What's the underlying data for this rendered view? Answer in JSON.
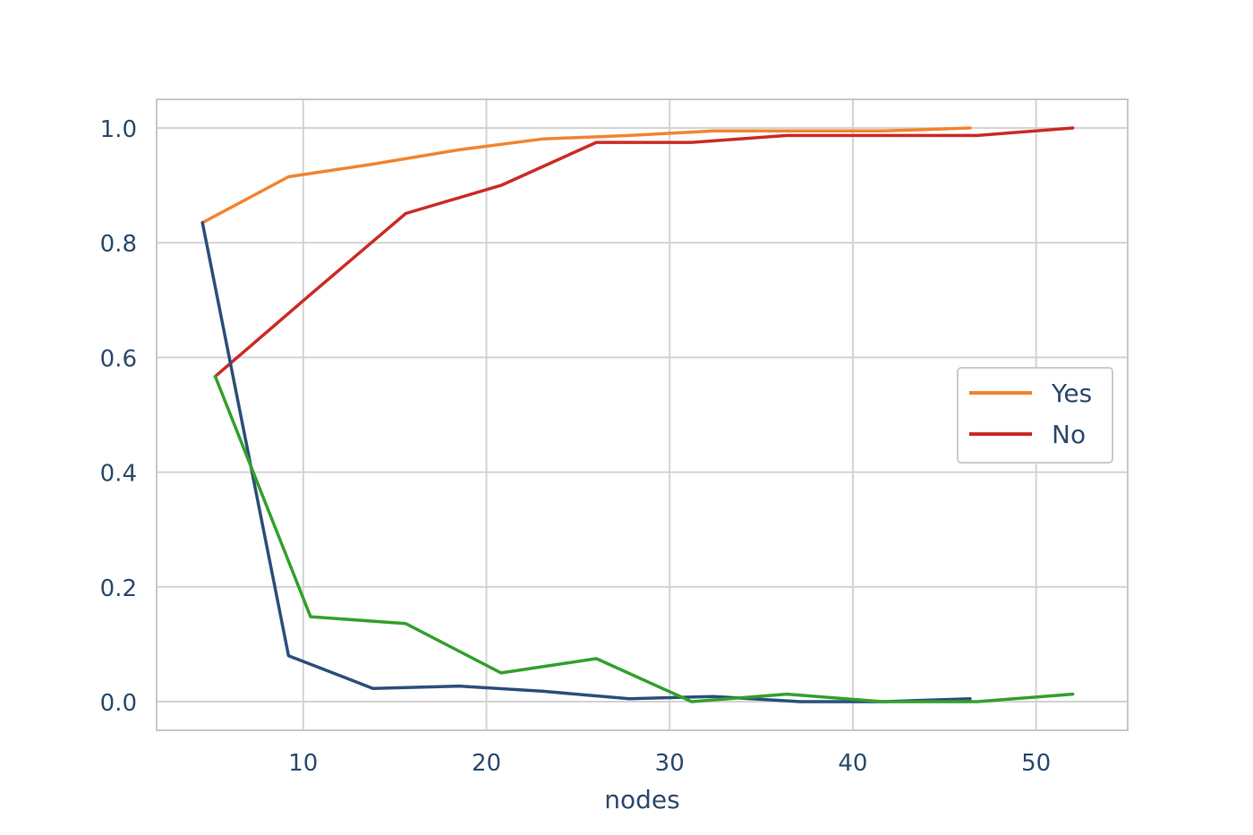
{
  "chart_data": {
    "type": "line",
    "title": "",
    "xlabel": "nodes",
    "ylabel": "",
    "xlim": [
      2,
      55
    ],
    "ylim": [
      -0.05,
      1.05
    ],
    "xticks": [
      10,
      20,
      30,
      40,
      50
    ],
    "yticks": [
      0.0,
      0.2,
      0.4,
      0.6,
      0.8,
      1.0
    ],
    "xtick_labels": [
      "10",
      "20",
      "30",
      "40",
      "50"
    ],
    "ytick_labels": [
      "0.0",
      "0.2",
      "0.4",
      "0.6",
      "0.8",
      "1.0"
    ],
    "grid": true,
    "legend_position": "center-right",
    "series": [
      {
        "name": "Yes",
        "color": "#f28430",
        "in_legend": true,
        "x": [
          4.5,
          9.2,
          13.8,
          18.5,
          23.1,
          27.8,
          32.4,
          37.1,
          41.7,
          46.4
        ],
        "y": [
          0.835,
          0.915,
          0.937,
          0.962,
          0.981,
          0.987,
          0.995,
          0.995,
          0.995,
          1.0
        ]
      },
      {
        "name": "No",
        "color": "#cc2a26",
        "in_legend": true,
        "x": [
          5.2,
          10.4,
          15.6,
          20.8,
          26.0,
          31.2,
          36.4,
          41.6,
          46.8,
          52.0
        ],
        "y": [
          0.567,
          0.71,
          0.851,
          0.9,
          0.975,
          0.975,
          0.987,
          0.987,
          0.987,
          1.0
        ]
      },
      {
        "color": "#2b4f78",
        "in_legend": false,
        "x": [
          4.5,
          9.2,
          13.8,
          18.5,
          23.1,
          27.8,
          32.4,
          37.1,
          41.7,
          46.4
        ],
        "y": [
          0.835,
          0.08,
          0.023,
          0.027,
          0.018,
          0.005,
          0.009,
          0.0,
          0.0,
          0.005
        ]
      },
      {
        "color": "#33a02c",
        "in_legend": false,
        "x": [
          5.2,
          10.4,
          15.6,
          20.8,
          26.0,
          31.2,
          36.4,
          41.6,
          46.8,
          52.0
        ],
        "y": [
          0.567,
          0.148,
          0.136,
          0.05,
          0.075,
          0.0,
          0.013,
          0.0,
          0.0,
          0.013
        ]
      }
    ]
  }
}
